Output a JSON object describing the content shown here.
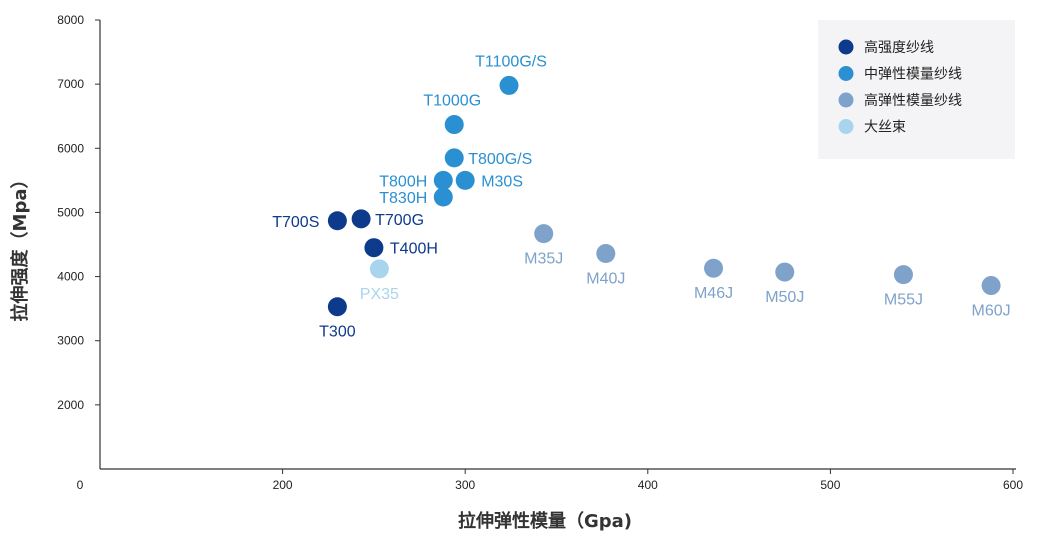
{
  "chart_data": {
    "type": "scatter",
    "title": "",
    "xlabel": "拉伸弹性模量（Gpa)",
    "ylabel": "拉伸强度（Mpa）",
    "xlim": [
      100,
      600
    ],
    "ylim": [
      1000,
      8000
    ],
    "x_ticks": [
      0,
      200,
      300,
      400,
      500,
      600
    ],
    "y_ticks": [
      2000,
      3000,
      4000,
      5000,
      6000,
      7000,
      8000
    ],
    "grid": false,
    "legend_position": "top-right",
    "series": [
      {
        "name": "高强度纱线",
        "color": "#0e3a8c",
        "points": [
          {
            "label": "T300",
            "x": 230,
            "y": 3530
          },
          {
            "label": "T700S",
            "x": 230,
            "y": 4870
          },
          {
            "label": "T700G",
            "x": 243,
            "y": 4900
          },
          {
            "label": "T400H",
            "x": 250,
            "y": 4450
          }
        ]
      },
      {
        "name": "中弹性模量纱线",
        "color": "#2a90d2",
        "points": [
          {
            "label": "T1100G/S",
            "x": 324,
            "y": 6980
          },
          {
            "label": "T1000G",
            "x": 294,
            "y": 6370
          },
          {
            "label": "T800G/S",
            "x": 294,
            "y": 5850
          },
          {
            "label": "T800H",
            "x": 288,
            "y": 5500
          },
          {
            "label": "M30S",
            "x": 300,
            "y": 5500
          },
          {
            "label": "T830H",
            "x": 288,
            "y": 5240
          }
        ]
      },
      {
        "name": "高弹性模量纱线",
        "color": "#7fa2cb",
        "points": [
          {
            "label": "M35J",
            "x": 343,
            "y": 4670
          },
          {
            "label": "M40J",
            "x": 377,
            "y": 4360
          },
          {
            "label": "M46J",
            "x": 436,
            "y": 4130
          },
          {
            "label": "M50J",
            "x": 475,
            "y": 4070
          },
          {
            "label": "M55J",
            "x": 540,
            "y": 4030
          },
          {
            "label": "M60J",
            "x": 588,
            "y": 3860
          }
        ]
      },
      {
        "name": "大丝束",
        "color": "#a8d4ee",
        "points": [
          {
            "label": "PX35",
            "x": 253,
            "y": 4120
          }
        ]
      }
    ]
  }
}
